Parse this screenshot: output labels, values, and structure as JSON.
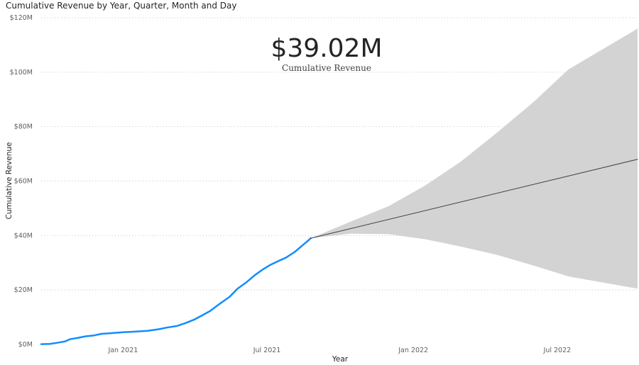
{
  "chart_data": {
    "type": "line",
    "title": "Cumulative Revenue by Year, Quarter, Month and Day",
    "xlabel": "Year",
    "ylabel": "Cumulative Revenue",
    "ylim": [
      0,
      120
    ],
    "yticks": [
      0,
      20,
      40,
      60,
      80,
      100,
      120
    ],
    "ytick_labels": [
      "$0M",
      "$20M",
      "$40M",
      "$60M",
      "$80M",
      "$100M",
      "$120M"
    ],
    "xlim": [
      "2020-09-20",
      "2022-10-10"
    ],
    "xticks": [
      "2021-01-01",
      "2021-07-01",
      "2022-01-01",
      "2022-07-01"
    ],
    "xtick_labels": [
      "Jan 2021",
      "Jul 2021",
      "Jan 2022",
      "Jul 2022"
    ],
    "grid": true,
    "kpi": {
      "value": "$39.02M",
      "label": "Cumulative Revenue"
    },
    "series": [
      {
        "color": "#118dff",
        "points": [
          [
            "2020-09-20",
            0.1
          ],
          [
            "2020-10-01",
            0.2
          ],
          [
            "2020-10-10",
            0.6
          ],
          [
            "2020-10-20",
            1.1
          ],
          [
            "2020-10-26",
            1.9
          ],
          [
            "2020-11-05",
            2.4
          ],
          [
            "2020-11-15",
            3.0
          ],
          [
            "2020-11-25",
            3.3
          ],
          [
            "2020-12-05",
            3.9
          ],
          [
            "2020-12-15",
            4.1
          ],
          [
            "2021-01-01",
            4.5
          ],
          [
            "2021-01-15",
            4.7
          ],
          [
            "2021-02-01",
            5.0
          ],
          [
            "2021-02-15",
            5.6
          ],
          [
            "2021-02-25",
            6.2
          ],
          [
            "2021-03-10",
            6.8
          ],
          [
            "2021-03-20",
            7.8
          ],
          [
            "2021-04-01",
            9.2
          ],
          [
            "2021-04-10",
            10.6
          ],
          [
            "2021-04-20",
            12.2
          ],
          [
            "2021-05-01",
            14.6
          ],
          [
            "2021-05-15",
            17.5
          ],
          [
            "2021-05-25",
            20.5
          ],
          [
            "2021-06-05",
            22.8
          ],
          [
            "2021-06-15",
            25.3
          ],
          [
            "2021-06-25",
            27.4
          ],
          [
            "2021-07-05",
            29.2
          ],
          [
            "2021-07-15",
            30.6
          ],
          [
            "2021-07-25",
            31.9
          ],
          [
            "2021-08-05",
            34.0
          ],
          [
            "2021-08-15",
            36.5
          ],
          [
            "2021-08-22",
            38.2
          ],
          [
            "2021-08-25",
            39.02
          ]
        ]
      },
      {
        "color": "#404040",
        "style": "forecast",
        "points": [
          [
            "2021-08-25",
            39.02
          ],
          [
            "2022-10-10",
            68.0
          ]
        ]
      }
    ],
    "confidence_band": {
      "color": "#d3d3d3",
      "points": [
        [
          "2021-08-25",
          39.02,
          39.02
        ],
        [
          "2021-10-15",
          40.7,
          45.2
        ],
        [
          "2021-12-01",
          40.5,
          50.8
        ],
        [
          "2022-01-15",
          38.7,
          58.2
        ],
        [
          "2022-03-01",
          36.0,
          67.0
        ],
        [
          "2022-04-15",
          33.0,
          77.5
        ],
        [
          "2022-06-01",
          29.0,
          89.0
        ],
        [
          "2022-07-15",
          25.0,
          101.0
        ],
        [
          "2022-10-10",
          20.5,
          116.0
        ]
      ]
    }
  }
}
